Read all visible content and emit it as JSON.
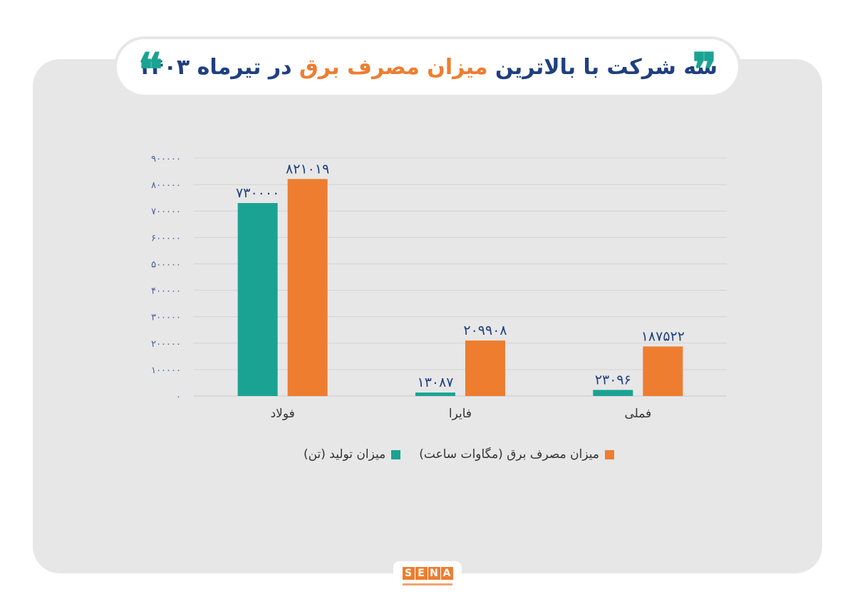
{
  "title": {
    "part1": "سه شرکت با بالاترین ",
    "highlight": "میزان مصرف برق",
    "part2": " در تیرماه ۱۴۰۳",
    "quote_open": "❞",
    "quote_close": "❝"
  },
  "logo": {
    "letters": [
      "S",
      "E",
      "N",
      "A"
    ]
  },
  "colors": {
    "production": "#1aa393",
    "consumption": "#ee7d2f",
    "title": "#1f3f80",
    "card": "#e7e7e7"
  },
  "chart_data": {
    "type": "bar",
    "categories": [
      "فولاد",
      "فایرا",
      "فملی"
    ],
    "series": [
      {
        "name": "میزان تولید (تن)",
        "values": [
          730000,
          13087,
          23096
        ],
        "labels": [
          "۷۳۰۰۰۰",
          "۱۳۰۸۷",
          "۲۳۰۹۶"
        ]
      },
      {
        "name": "میزان مصرف برق (مگاوات ساعت)",
        "values": [
          821019,
          209908,
          187522
        ],
        "labels": [
          "۸۲۱۰۱۹",
          "۲۰۹۹۰۸",
          "۱۸۷۵۲۲"
        ]
      }
    ],
    "ylim": [
      0,
      900000
    ],
    "yticks": [
      {
        "value": 0,
        "label": "۰"
      },
      {
        "value": 100000,
        "label": "۱۰۰۰۰۰"
      },
      {
        "value": 200000,
        "label": "۲۰۰۰۰۰"
      },
      {
        "value": 300000,
        "label": "۳۰۰۰۰۰"
      },
      {
        "value": 400000,
        "label": "۴۰۰۰۰۰"
      },
      {
        "value": 500000,
        "label": "۵۰۰۰۰۰"
      },
      {
        "value": 600000,
        "label": "۶۰۰۰۰۰"
      },
      {
        "value": 700000,
        "label": "۷۰۰۰۰۰"
      },
      {
        "value": 800000,
        "label": "۸۰۰۰۰۰"
      },
      {
        "value": 900000,
        "label": "۹۰۰۰۰۰"
      }
    ],
    "grid": true,
    "legend_position": "bottom"
  }
}
